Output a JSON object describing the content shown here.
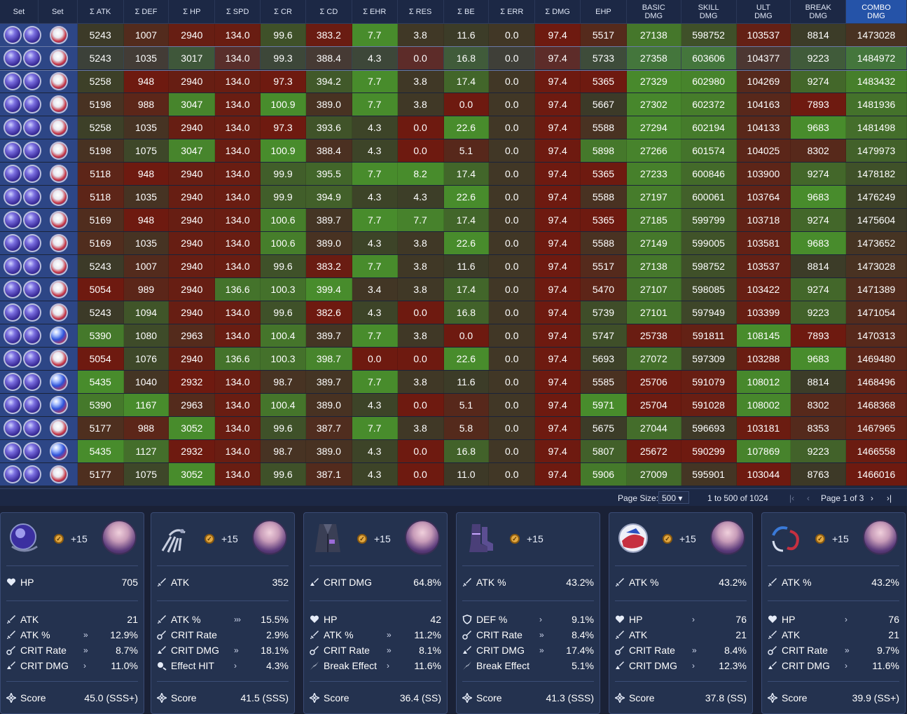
{
  "columns": [
    {
      "key": "set1",
      "label": "Set",
      "w": 55
    },
    {
      "key": "set2",
      "label": "Set",
      "w": 56
    },
    {
      "key": "atk",
      "label": "Σ ATK",
      "w": 66
    },
    {
      "key": "def",
      "label": "Σ DEF",
      "w": 65
    },
    {
      "key": "hp",
      "label": "Σ HP",
      "w": 66
    },
    {
      "key": "spd",
      "label": "Σ SPD",
      "w": 65
    },
    {
      "key": "cr",
      "label": "Σ CR",
      "w": 65
    },
    {
      "key": "cd",
      "label": "Σ CD",
      "w": 66
    },
    {
      "key": "ehr",
      "label": "Σ EHR",
      "w": 65
    },
    {
      "key": "res",
      "label": "Σ RES",
      "w": 66
    },
    {
      "key": "be",
      "label": "Σ BE",
      "w": 65
    },
    {
      "key": "err",
      "label": "Σ ERR",
      "w": 66
    },
    {
      "key": "dmg",
      "label": "Σ DMG",
      "w": 65
    },
    {
      "key": "ehp",
      "label": "EHP",
      "w": 66
    },
    {
      "key": "basic",
      "label": "BASIC\nDMG",
      "w": 78
    },
    {
      "key": "skill",
      "label": "SKILL\nDMG",
      "w": 79
    },
    {
      "key": "ult",
      "label": "ULT\nDMG",
      "w": 78
    },
    {
      "key": "brk",
      "label": "BREAK\nDMG",
      "w": 79
    },
    {
      "key": "combo",
      "label": "COMBO\nDMG",
      "w": 87
    }
  ],
  "rows": [
    {
      "sets": [
        "orb",
        "orb",
        "rope"
      ],
      "v": [
        "5243",
        "1007",
        "2940",
        "134.0",
        "99.6",
        "383.2",
        "7.7",
        "3.8",
        "11.6",
        "0.0",
        "97.4",
        "5517",
        "27138",
        "598752",
        "103537",
        "8814",
        "1473028"
      ]
    },
    {
      "sets": [
        "orb",
        "orb",
        "rope"
      ],
      "v": [
        "5243",
        "1035",
        "3017",
        "134.0",
        "99.3",
        "388.4",
        "4.3",
        "0.0",
        "16.8",
        "0.0",
        "97.4",
        "5733",
        "27358",
        "603606",
        "104377",
        "9223",
        "1484972"
      ],
      "selected": true
    },
    {
      "sets": [
        "orb",
        "orb",
        "rope"
      ],
      "v": [
        "5258",
        "948",
        "2940",
        "134.0",
        "97.3",
        "394.2",
        "7.7",
        "3.8",
        "17.4",
        "0.0",
        "97.4",
        "5365",
        "27329",
        "602980",
        "104269",
        "9274",
        "1483432"
      ]
    },
    {
      "sets": [
        "orb",
        "orb",
        "rope"
      ],
      "v": [
        "5198",
        "988",
        "3047",
        "134.0",
        "100.9",
        "389.0",
        "7.7",
        "3.8",
        "0.0",
        "0.0",
        "97.4",
        "5667",
        "27302",
        "602372",
        "104163",
        "7893",
        "1481936"
      ]
    },
    {
      "sets": [
        "orb",
        "orb",
        "rope"
      ],
      "v": [
        "5258",
        "1035",
        "2940",
        "134.0",
        "97.3",
        "393.6",
        "4.3",
        "0.0",
        "22.6",
        "0.0",
        "97.4",
        "5588",
        "27294",
        "602194",
        "104133",
        "9683",
        "1481498"
      ]
    },
    {
      "sets": [
        "orb",
        "orb",
        "rope"
      ],
      "v": [
        "5198",
        "1075",
        "3047",
        "134.0",
        "100.9",
        "388.4",
        "4.3",
        "0.0",
        "5.1",
        "0.0",
        "97.4",
        "5898",
        "27266",
        "601574",
        "104025",
        "8302",
        "1479973"
      ]
    },
    {
      "sets": [
        "orb",
        "orb",
        "rope"
      ],
      "v": [
        "5118",
        "948",
        "2940",
        "134.0",
        "99.9",
        "395.5",
        "7.7",
        "8.2",
        "17.4",
        "0.0",
        "97.4",
        "5365",
        "27233",
        "600846",
        "103900",
        "9274",
        "1478182"
      ]
    },
    {
      "sets": [
        "orb",
        "orb",
        "rope"
      ],
      "v": [
        "5118",
        "1035",
        "2940",
        "134.0",
        "99.9",
        "394.9",
        "4.3",
        "4.3",
        "22.6",
        "0.0",
        "97.4",
        "5588",
        "27197",
        "600061",
        "103764",
        "9683",
        "1476249"
      ]
    },
    {
      "sets": [
        "orb",
        "orb",
        "rope"
      ],
      "v": [
        "5169",
        "948",
        "2940",
        "134.0",
        "100.6",
        "389.7",
        "7.7",
        "7.7",
        "17.4",
        "0.0",
        "97.4",
        "5365",
        "27185",
        "599799",
        "103718",
        "9274",
        "1475604"
      ]
    },
    {
      "sets": [
        "orb",
        "orb",
        "rope"
      ],
      "v": [
        "5169",
        "1035",
        "2940",
        "134.0",
        "100.6",
        "389.0",
        "4.3",
        "3.8",
        "22.6",
        "0.0",
        "97.4",
        "5588",
        "27149",
        "599005",
        "103581",
        "9683",
        "1473652"
      ]
    },
    {
      "sets": [
        "orb",
        "orb",
        "rope"
      ],
      "v": [
        "5243",
        "1007",
        "2940",
        "134.0",
        "99.6",
        "383.2",
        "7.7",
        "3.8",
        "11.6",
        "0.0",
        "97.4",
        "5517",
        "27138",
        "598752",
        "103537",
        "8814",
        "1473028"
      ]
    },
    {
      "sets": [
        "orb",
        "orb",
        "rope"
      ],
      "v": [
        "5054",
        "989",
        "2940",
        "136.6",
        "100.3",
        "399.4",
        "3.4",
        "3.8",
        "17.4",
        "0.0",
        "97.4",
        "5470",
        "27107",
        "598085",
        "103422",
        "9274",
        "1471389"
      ]
    },
    {
      "sets": [
        "orb",
        "orb",
        "rope"
      ],
      "v": [
        "5243",
        "1094",
        "2940",
        "134.0",
        "99.6",
        "382.6",
        "4.3",
        "0.0",
        "16.8",
        "0.0",
        "97.4",
        "5739",
        "27101",
        "597949",
        "103399",
        "9223",
        "1471054"
      ]
    },
    {
      "sets": [
        "orb",
        "orb",
        "flag"
      ],
      "v": [
        "5390",
        "1080",
        "2963",
        "134.0",
        "100.4",
        "389.7",
        "7.7",
        "3.8",
        "0.0",
        "0.0",
        "97.4",
        "5747",
        "25738",
        "591811",
        "108145",
        "7893",
        "1470313"
      ]
    },
    {
      "sets": [
        "orb",
        "orb",
        "rope"
      ],
      "v": [
        "5054",
        "1076",
        "2940",
        "136.6",
        "100.3",
        "398.7",
        "0.0",
        "0.0",
        "22.6",
        "0.0",
        "97.4",
        "5693",
        "27072",
        "597309",
        "103288",
        "9683",
        "1469480"
      ]
    },
    {
      "sets": [
        "orb",
        "orb",
        "flag"
      ],
      "v": [
        "5435",
        "1040",
        "2932",
        "134.0",
        "98.7",
        "389.7",
        "7.7",
        "3.8",
        "11.6",
        "0.0",
        "97.4",
        "5585",
        "25706",
        "591079",
        "108012",
        "8814",
        "1468496"
      ]
    },
    {
      "sets": [
        "orb",
        "orb",
        "flag"
      ],
      "v": [
        "5390",
        "1167",
        "2963",
        "134.0",
        "100.4",
        "389.0",
        "4.3",
        "0.0",
        "5.1",
        "0.0",
        "97.4",
        "5971",
        "25704",
        "591028",
        "108002",
        "8302",
        "1468368"
      ]
    },
    {
      "sets": [
        "orb",
        "orb",
        "rope"
      ],
      "v": [
        "5177",
        "988",
        "3052",
        "134.0",
        "99.6",
        "387.7",
        "7.7",
        "3.8",
        "5.8",
        "0.0",
        "97.4",
        "5675",
        "27044",
        "596693",
        "103181",
        "8353",
        "1467965"
      ]
    },
    {
      "sets": [
        "orb",
        "orb",
        "flag"
      ],
      "v": [
        "5435",
        "1127",
        "2932",
        "134.0",
        "98.7",
        "389.0",
        "4.3",
        "0.0",
        "16.8",
        "0.0",
        "97.4",
        "5807",
        "25672",
        "590299",
        "107869",
        "9223",
        "1466558"
      ]
    },
    {
      "sets": [
        "orb",
        "orb",
        "rope"
      ],
      "v": [
        "5177",
        "1075",
        "3052",
        "134.0",
        "99.6",
        "387.1",
        "4.3",
        "0.0",
        "11.0",
        "0.0",
        "97.4",
        "5906",
        "27009",
        "595901",
        "103044",
        "8763",
        "1466016"
      ]
    }
  ],
  "pager": {
    "page_size_label": "Page Size:",
    "page_size": "500",
    "range": "1 to 500 of 1024",
    "page": "Page 1 of 3"
  },
  "panels": [
    {
      "level": "+15",
      "main": {
        "name": "HP",
        "value": "705",
        "icon": "heart-icon"
      },
      "subs": [
        {
          "name": "ATK",
          "rolls": "",
          "value": "21",
          "icon": "sword-icon"
        },
        {
          "name": "ATK %",
          "rolls": "»",
          "value": "12.9%",
          "icon": "sword-icon"
        },
        {
          "name": "CRIT Rate",
          "rolls": "»",
          "value": "8.7%",
          "icon": "crit-rate-icon"
        },
        {
          "name": "CRIT DMG",
          "rolls": "›",
          "value": "11.0%",
          "icon": "crit-dmg-icon"
        }
      ],
      "score_label": "Score",
      "score": "45.0 (SSS+)"
    },
    {
      "level": "+15",
      "main": {
        "name": "ATK",
        "value": "352",
        "icon": "sword-icon"
      },
      "subs": [
        {
          "name": "ATK %",
          "rolls": "›››",
          "value": "15.5%",
          "icon": "sword-icon"
        },
        {
          "name": "CRIT Rate",
          "rolls": "",
          "value": "2.9%",
          "icon": "crit-rate-icon"
        },
        {
          "name": "CRIT DMG",
          "rolls": "»",
          "value": "18.1%",
          "icon": "crit-dmg-icon"
        },
        {
          "name": "Effect HIT",
          "rolls": "›",
          "value": "4.3%",
          "icon": "effect-hit-icon"
        }
      ],
      "score_label": "Score",
      "score": "41.5 (SSS)"
    },
    {
      "level": "+15",
      "main": {
        "name": "CRIT DMG",
        "value": "64.8%",
        "icon": "crit-dmg-icon"
      },
      "subs": [
        {
          "name": "HP",
          "rolls": "",
          "value": "42",
          "icon": "heart-icon"
        },
        {
          "name": "ATK %",
          "rolls": "»",
          "value": "11.2%",
          "icon": "sword-icon"
        },
        {
          "name": "CRIT Rate",
          "rolls": "»",
          "value": "8.1%",
          "icon": "crit-rate-icon"
        },
        {
          "name": "Break Effect",
          "rolls": "›",
          "value": "11.6%",
          "icon": "break-icon"
        }
      ],
      "score_label": "Score",
      "score": "36.4 (SS)"
    },
    {
      "level": "+15",
      "main": {
        "name": "ATK %",
        "value": "43.2%",
        "icon": "sword-icon"
      },
      "subs": [
        {
          "name": "DEF %",
          "rolls": "›",
          "value": "9.1%",
          "icon": "shield-icon"
        },
        {
          "name": "CRIT Rate",
          "rolls": "»",
          "value": "8.4%",
          "icon": "crit-rate-icon"
        },
        {
          "name": "CRIT DMG",
          "rolls": "»",
          "value": "17.4%",
          "icon": "crit-dmg-icon"
        },
        {
          "name": "Break Effect",
          "rolls": "",
          "value": "5.1%",
          "icon": "break-icon"
        }
      ],
      "score_label": "Score",
      "score": "41.3 (SSS)"
    },
    {
      "level": "+15",
      "main": {
        "name": "ATK %",
        "value": "43.2%",
        "icon": "sword-icon"
      },
      "subs": [
        {
          "name": "HP",
          "rolls": "›",
          "value": "76",
          "icon": "heart-icon"
        },
        {
          "name": "ATK",
          "rolls": "",
          "value": "21",
          "icon": "sword-icon"
        },
        {
          "name": "CRIT Rate",
          "rolls": "»",
          "value": "8.4%",
          "icon": "crit-rate-icon"
        },
        {
          "name": "CRIT DMG",
          "rolls": "›",
          "value": "12.3%",
          "icon": "crit-dmg-icon"
        }
      ],
      "score_label": "Score",
      "score": "37.8 (SS)"
    },
    {
      "level": "+15",
      "main": {
        "name": "ATK %",
        "value": "43.2%",
        "icon": "sword-icon"
      },
      "subs": [
        {
          "name": "HP",
          "rolls": "›",
          "value": "76",
          "icon": "heart-icon"
        },
        {
          "name": "ATK",
          "rolls": "",
          "value": "21",
          "icon": "sword-icon"
        },
        {
          "name": "CRIT Rate",
          "rolls": "»",
          "value": "9.7%",
          "icon": "crit-rate-icon"
        },
        {
          "name": "CRIT DMG",
          "rolls": "›",
          "value": "11.6%",
          "icon": "crit-dmg-icon"
        }
      ],
      "score_label": "Score",
      "score": "39.9 (SS+)"
    }
  ],
  "colors": {
    "green": "#3f7d2c",
    "red": "#6a1a12",
    "selected_row": "#3a5a4a",
    "set_bg": "#2d4686",
    "combo_header": "#2553a8"
  }
}
